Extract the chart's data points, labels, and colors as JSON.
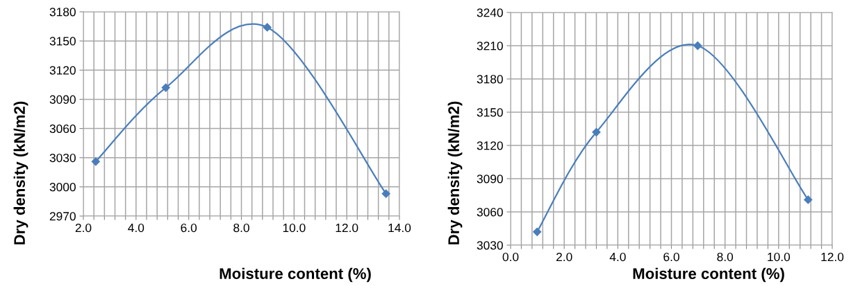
{
  "chart_data": [
    {
      "type": "line",
      "xlabel": "Moisture content (%)",
      "ylabel": "Dry density (kN/m2)",
      "x": [
        2.47,
        5.13,
        8.98,
        13.49
      ],
      "series": [
        {
          "color": "#4a7ebb",
          "values": [
            3026,
            3102,
            3164,
            2993
          ]
        }
      ],
      "xlim": [
        2.0,
        14.0
      ],
      "ylim": [
        2970,
        3180
      ],
      "xticks": [
        {
          "value": 2.0,
          "label": "2.0"
        },
        {
          "value": 2.4,
          "label": null
        },
        {
          "value": 2.8,
          "label": null
        },
        {
          "value": 3.2,
          "label": null
        },
        {
          "value": 3.6,
          "label": null
        },
        {
          "value": 4.0,
          "label": "4.0"
        },
        {
          "value": 4.4,
          "label": null
        },
        {
          "value": 4.8,
          "label": null
        },
        {
          "value": 5.2,
          "label": null
        },
        {
          "value": 5.6,
          "label": null
        },
        {
          "value": 6.0,
          "label": "6.0"
        },
        {
          "value": 6.4,
          "label": null
        },
        {
          "value": 6.8,
          "label": null
        },
        {
          "value": 7.2,
          "label": null
        },
        {
          "value": 7.6,
          "label": null
        },
        {
          "value": 8.0,
          "label": "8.0"
        },
        {
          "value": 8.4,
          "label": null
        },
        {
          "value": 8.8,
          "label": null
        },
        {
          "value": 9.2,
          "label": null
        },
        {
          "value": 9.6,
          "label": null
        },
        {
          "value": 10.0,
          "label": "10.0"
        },
        {
          "value": 10.4,
          "label": null
        },
        {
          "value": 10.8,
          "label": null
        },
        {
          "value": 11.2,
          "label": null
        },
        {
          "value": 11.6,
          "label": null
        },
        {
          "value": 12.0,
          "label": "12.0"
        },
        {
          "value": 12.4,
          "label": null
        },
        {
          "value": 12.8,
          "label": null
        },
        {
          "value": 13.2,
          "label": null
        },
        {
          "value": 13.6,
          "label": null
        },
        {
          "value": 14.0,
          "label": "14.0"
        }
      ],
      "yticks": [
        2970,
        3000,
        3030,
        3060,
        3090,
        3120,
        3150,
        3180
      ],
      "grid": true,
      "marker": "diamond",
      "line_style": "solid",
      "legend": false
    },
    {
      "type": "line",
      "xlabel": "Moisture content (%)",
      "ylabel": "Dry density (kN/m2)",
      "x": [
        0.99,
        3.2,
        6.98,
        11.1
      ],
      "series": [
        {
          "color": "#4a7ebb",
          "values": [
            3042,
            3132,
            3210,
            3071
          ]
        }
      ],
      "xlim": [
        0.0,
        12.0
      ],
      "ylim": [
        3030,
        3240
      ],
      "xticks": [
        {
          "value": 0.0,
          "label": "0.0"
        },
        {
          "value": 0.4,
          "label": null
        },
        {
          "value": 0.8,
          "label": null
        },
        {
          "value": 1.2,
          "label": null
        },
        {
          "value": 1.6,
          "label": null
        },
        {
          "value": 2.0,
          "label": "2.0"
        },
        {
          "value": 2.4,
          "label": null
        },
        {
          "value": 2.8,
          "label": null
        },
        {
          "value": 3.2,
          "label": null
        },
        {
          "value": 3.6,
          "label": null
        },
        {
          "value": 4.0,
          "label": "4.0"
        },
        {
          "value": 4.4,
          "label": null
        },
        {
          "value": 4.8,
          "label": null
        },
        {
          "value": 5.2,
          "label": null
        },
        {
          "value": 5.6,
          "label": null
        },
        {
          "value": 6.0,
          "label": "6.0"
        },
        {
          "value": 6.4,
          "label": null
        },
        {
          "value": 6.8,
          "label": null
        },
        {
          "value": 7.2,
          "label": null
        },
        {
          "value": 7.6,
          "label": null
        },
        {
          "value": 8.0,
          "label": "8.0"
        },
        {
          "value": 8.4,
          "label": null
        },
        {
          "value": 8.8,
          "label": null
        },
        {
          "value": 9.2,
          "label": null
        },
        {
          "value": 9.6,
          "label": null
        },
        {
          "value": 10.0,
          "label": "10.0"
        },
        {
          "value": 10.4,
          "label": null
        },
        {
          "value": 10.8,
          "label": null
        },
        {
          "value": 11.2,
          "label": null
        },
        {
          "value": 11.6,
          "label": null
        },
        {
          "value": 12.0,
          "label": "12.0"
        }
      ],
      "yticks": [
        3030,
        3060,
        3090,
        3120,
        3150,
        3180,
        3210,
        3240
      ],
      "grid": true,
      "marker": "diamond",
      "line_style": "solid",
      "legend": false
    }
  ]
}
